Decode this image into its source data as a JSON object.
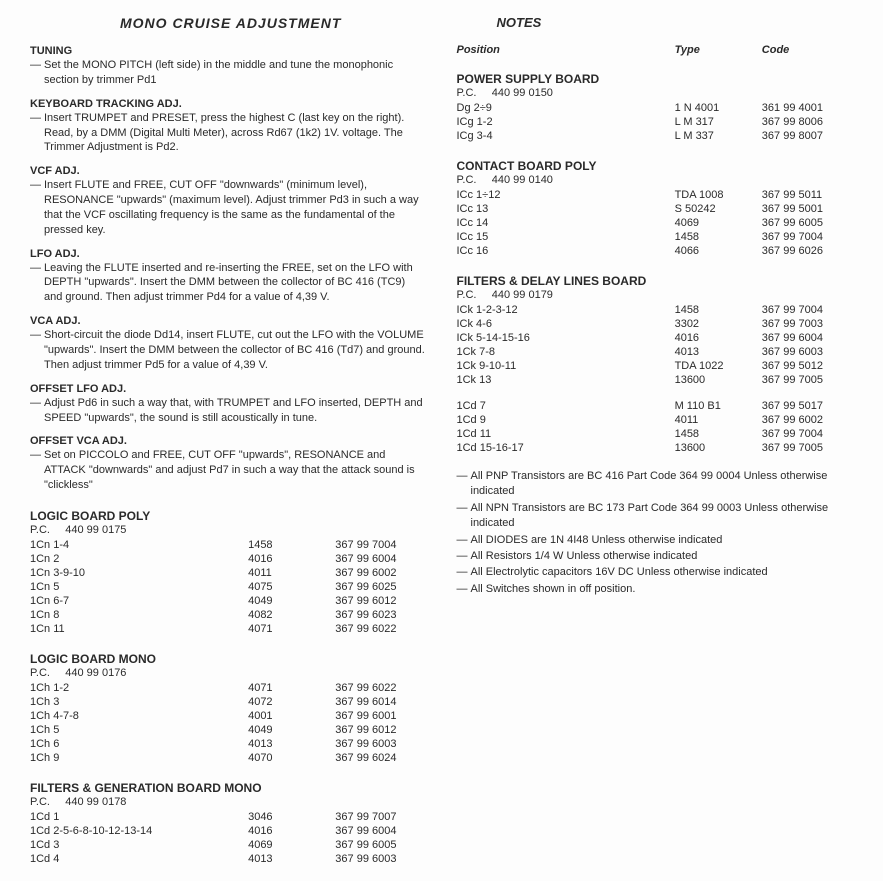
{
  "left": {
    "title": "MONO CRUISE ADJUSTMENT",
    "sections": [
      {
        "heading": "TUNING",
        "lines": [
          "Set the MONO PITCH (left side) in the middle and tune the monophonic section by trimmer Pd1"
        ]
      },
      {
        "heading": "KEYBOARD TRACKING ADJ.",
        "lines": [
          "Insert TRUMPET and PRESET, press the highest C (last key on the right). Read, by a DMM (Digital Multi Meter), across Rd67 (1k2) 1V. voltage. The Trimmer Adjustment is Pd2."
        ]
      },
      {
        "heading": "VCF ADJ.",
        "lines": [
          "Insert FLUTE and FREE, CUT OFF \"downwards\" (minimum level), RESONANCE \"upwards\" (maximum level). Adjust trimmer Pd3 in such a way that the VCF oscillating frequency is the same as the fundamental of the pressed key."
        ]
      },
      {
        "heading": "LFO ADJ.",
        "lines": [
          "Leaving the FLUTE inserted and re-inserting the FREE, set on the LFO with DEPTH \"upwards\". Insert the DMM between the collector of BC 416 (TC9) and ground. Then adjust trimmer Pd4 for a value of 4,39 V."
        ]
      },
      {
        "heading": "VCA ADJ.",
        "lines": [
          "Short-circuit the diode Dd14, insert FLUTE, cut out the LFO with the VOLUME \"upwards\". Insert the DMM between the collector of BC 416 (Td7) and ground. Then adjust trimmer Pd5 for a value of 4,39 V."
        ]
      },
      {
        "heading": "OFFSET LFO ADJ.",
        "lines": [
          "Adjust Pd6 in such a way that, with TRUMPET and LFO inserted, DEPTH and SPEED \"upwards\", the sound is still acoustically in tune."
        ]
      },
      {
        "heading": "OFFSET VCA ADJ.",
        "lines": [
          "Set on PICCOLO and FREE, CUT OFF \"upwards\", RESONANCE and ATTACK \"downwards\" and adjust Pd7 in such a way that the attack sound is \"clickless\""
        ]
      }
    ],
    "boards": [
      {
        "title": "LOGIC BOARD POLY",
        "pc": "P.C.     440 99 0175",
        "rows": [
          [
            "1Cn 1-4",
            "1458",
            "367 99 7004"
          ],
          [
            "1Cn 2",
            "4016",
            "367 99 6004"
          ],
          [
            "1Cn 3-9-10",
            "4011",
            "367 99 6002"
          ],
          [
            "1Cn 5",
            "4075",
            "367 99 6025"
          ],
          [
            "1Cn 6-7",
            "4049",
            "367 99 6012"
          ],
          [
            "1Cn 8",
            "4082",
            "367 99 6023"
          ],
          [
            "1Cn 11",
            "4071",
            "367 99 6022"
          ]
        ]
      },
      {
        "title": "LOGIC BOARD MONO",
        "pc": "P.C.     440 99 0176",
        "rows": [
          [
            "1Ch 1-2",
            "4071",
            "367 99 6022"
          ],
          [
            "1Ch 3",
            "4072",
            "367 99 6014"
          ],
          [
            "1Ch 4-7-8",
            "4001",
            "367 99 6001"
          ],
          [
            "1Ch 5",
            "4049",
            "367 99 6012"
          ],
          [
            "1Ch 6",
            "4013",
            "367 99 6003"
          ],
          [
            "1Ch 9",
            "4070",
            "367 99 6024"
          ]
        ]
      },
      {
        "title": "FILTERS & GENERATION BOARD MONO",
        "pc": "P.C.     440 99 0178",
        "rows": [
          [
            "1Cd 1",
            "3046",
            "367 99 7007"
          ],
          [
            "1Cd 2-5-6-8-10-12-13-14",
            "4016",
            "367 99 6004"
          ],
          [
            "1Cd 3",
            "4069",
            "367 99 6005"
          ],
          [
            "1Cd 4",
            "4013",
            "367 99 6003"
          ]
        ]
      }
    ]
  },
  "right": {
    "title": "NOTES",
    "headers": [
      "Position",
      "Type",
      "Code"
    ],
    "boards": [
      {
        "title": "POWER SUPPLY BOARD",
        "pc": "P.C.     440 99 0150",
        "rows": [
          [
            "Dg 2÷9",
            "1 N 4001",
            "361 99 4001"
          ],
          [
            "ICg 1-2",
            "L M 317",
            "367 99 8006"
          ],
          [
            "ICg 3-4",
            "L M 337",
            "367 99 8007"
          ]
        ]
      },
      {
        "title": "CONTACT BOARD POLY",
        "pc": "P.C.     440 99 0140",
        "rows": [
          [
            "ICc 1÷12",
            "TDA 1008",
            "367 99 5011"
          ],
          [
            "ICc 13",
            "S   50242",
            "367 99 5001"
          ],
          [
            "ICc 14",
            "4069",
            "367 99 6005"
          ],
          [
            "ICc 15",
            "1458",
            "367 99 7004"
          ],
          [
            "ICc 16",
            "4066",
            "367 99 6026"
          ]
        ]
      },
      {
        "title": "FILTERS & DELAY LINES BOARD",
        "pc": "P.C.     440 99 0179",
        "rows": [
          [
            "ICk 1-2-3-12",
            "1458",
            "367 99 7004"
          ],
          [
            "ICk 4-6",
            "3302",
            "367 99 7003"
          ],
          [
            "ICk 5-14-15-16",
            "4016",
            "367 99 6004"
          ],
          [
            "1Ck 7-8",
            "4013",
            "367 99 6003"
          ],
          [
            "1Ck 9-10-11",
            "TDA 1022",
            "367 99 5012"
          ],
          [
            "1Ck 13",
            "13600",
            "367 99 7005"
          ]
        ]
      },
      {
        "title": "",
        "pc": "",
        "rows": [
          [
            "1Cd 7",
            "M 110 B1",
            "367 99 5017"
          ],
          [
            "1Cd 9",
            "4011",
            "367 99 6002"
          ],
          [
            "1Cd 11",
            "1458",
            "367 99 7004"
          ],
          [
            "1Cd 15-16-17",
            "13600",
            "367 99 7005"
          ]
        ]
      }
    ],
    "general": [
      "All PNP Transistors are BC 416 Part Code 364 99 0004 Unless otherwise indicated",
      "All NPN Transistors are BC 173 Part Code 364 99 0003 Unless otherwise indicated",
      "All DIODES are 1N 4I48 Unless otherwise indicated",
      "All Resistors 1/4 W Unless otherwise indicated",
      "All Electrolytic capacitors 16V DC Unless otherwise indicated",
      "All Switches shown in off position."
    ]
  }
}
